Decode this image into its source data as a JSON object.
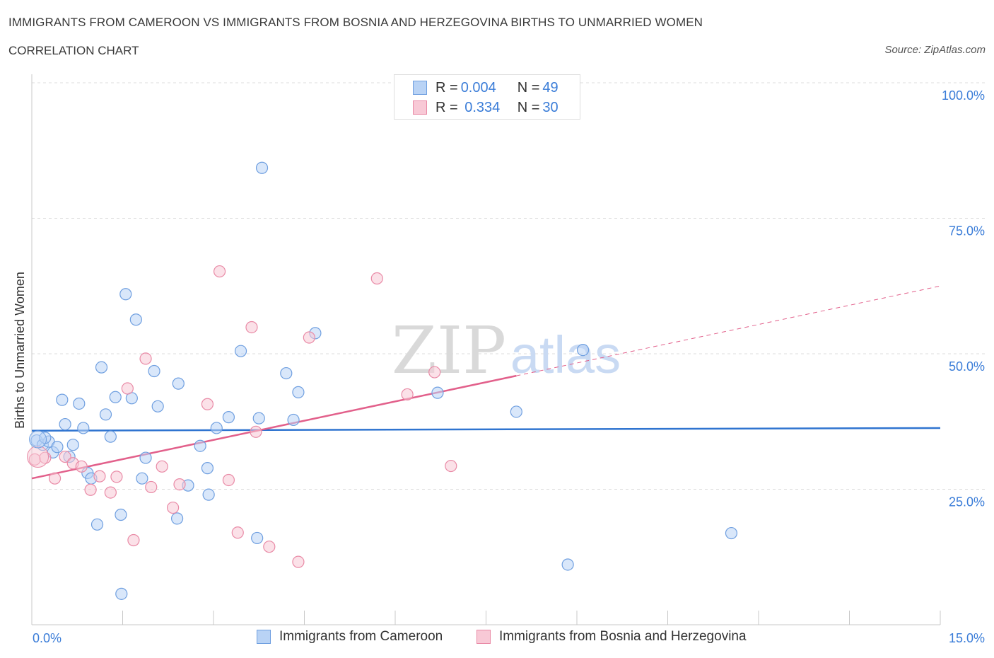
{
  "header": {
    "title": "IMMIGRANTS FROM CAMEROON VS IMMIGRANTS FROM BOSNIA AND HERZEGOVINA BIRTHS TO UNMARRIED WOMEN",
    "subtitle": "CORRELATION CHART",
    "source": "Source: ZipAtlas.com"
  },
  "legend": {
    "rows": [
      {
        "r_label": "R = ",
        "r_value": "0.004",
        "n_label": "N = ",
        "n_value": "49"
      },
      {
        "r_label": "R = ",
        "r_value": " 0.334",
        "n_label": "N = ",
        "n_value": "30"
      }
    ]
  },
  "colors": {
    "blue_fill": "#b9d3f5",
    "blue_stroke": "#6f9fe0",
    "blue_line": "#2f74d0",
    "pink_fill": "#f8c9d6",
    "pink_stroke": "#e98aa6",
    "pink_line": "#e2608b",
    "axis_text": "#3b7dd8",
    "grid": "#dcdcdc"
  },
  "chart_data": {
    "type": "scatter",
    "title": "IMMIGRANTS FROM CAMEROON VS IMMIGRANTS FROM BOSNIA AND HERZEGOVINA BIRTHS TO UNMARRIED WOMEN",
    "xlabel": "",
    "ylabel": "Births to Unmarried Women",
    "xlim": [
      0,
      15
    ],
    "ylim": [
      0,
      100
    ],
    "x_tick_labels": [
      "0.0%",
      "15.0%"
    ],
    "y_ticks": [
      25,
      50,
      75,
      100
    ],
    "y_tick_labels": [
      "25.0%",
      "50.0%",
      "75.0%",
      "100.0%"
    ],
    "watermark": {
      "zip": "ZIP",
      "atlas": "atlas"
    },
    "series": [
      {
        "name": "Immigrants from Cameroon",
        "color": "#b9d3f5",
        "R": 0.004,
        "N": 49,
        "trend": {
          "x": [
            0,
            15
          ],
          "y": [
            35.8,
            36.3
          ],
          "dashed_after": null
        },
        "points": [
          {
            "x": 0.08,
            "y": 34.0
          },
          {
            "x": 0.18,
            "y": 33.2
          },
          {
            "x": 0.28,
            "y": 33.8
          },
          {
            "x": 0.35,
            "y": 31.8
          },
          {
            "x": 0.42,
            "y": 32.8
          },
          {
            "x": 0.5,
            "y": 41.5
          },
          {
            "x": 0.55,
            "y": 37.0
          },
          {
            "x": 0.62,
            "y": 31.0
          },
          {
            "x": 0.68,
            "y": 33.2
          },
          {
            "x": 0.78,
            "y": 40.8
          },
          {
            "x": 0.85,
            "y": 36.3
          },
          {
            "x": 0.92,
            "y": 28.0
          },
          {
            "x": 0.98,
            "y": 27.0
          },
          {
            "x": 1.08,
            "y": 18.5
          },
          {
            "x": 1.15,
            "y": 47.5
          },
          {
            "x": 1.22,
            "y": 38.8
          },
          {
            "x": 1.3,
            "y": 34.7
          },
          {
            "x": 1.38,
            "y": 42.0
          },
          {
            "x": 1.47,
            "y": 20.3
          },
          {
            "x": 1.48,
            "y": 5.7
          },
          {
            "x": 1.55,
            "y": 61.0
          },
          {
            "x": 1.65,
            "y": 41.8
          },
          {
            "x": 1.72,
            "y": 56.3
          },
          {
            "x": 1.82,
            "y": 27.0
          },
          {
            "x": 1.88,
            "y": 30.8
          },
          {
            "x": 2.02,
            "y": 46.8
          },
          {
            "x": 2.08,
            "y": 40.3
          },
          {
            "x": 2.42,
            "y": 44.5
          },
          {
            "x": 2.4,
            "y": 19.6
          },
          {
            "x": 2.58,
            "y": 25.7
          },
          {
            "x": 2.78,
            "y": 33.0
          },
          {
            "x": 2.9,
            "y": 28.9
          },
          {
            "x": 2.92,
            "y": 24.0
          },
          {
            "x": 3.05,
            "y": 36.3
          },
          {
            "x": 3.25,
            "y": 38.3
          },
          {
            "x": 3.45,
            "y": 50.5
          },
          {
            "x": 3.8,
            "y": 84.3
          },
          {
            "x": 3.75,
            "y": 38.1
          },
          {
            "x": 3.72,
            "y": 16.0
          },
          {
            "x": 4.2,
            "y": 46.4
          },
          {
            "x": 4.32,
            "y": 37.8
          },
          {
            "x": 4.4,
            "y": 42.9
          },
          {
            "x": 4.68,
            "y": 53.8
          },
          {
            "x": 6.7,
            "y": 42.8
          },
          {
            "x": 8.0,
            "y": 39.3
          },
          {
            "x": 8.85,
            "y": 11.1
          },
          {
            "x": 9.1,
            "y": 50.7
          },
          {
            "x": 11.55,
            "y": 16.9
          },
          {
            "x": 0.22,
            "y": 34.5
          }
        ]
      },
      {
        "name": "Immigrants from Bosnia and Herzegovina",
        "color": "#f8c9d6",
        "R": 0.334,
        "N": 30,
        "trend": {
          "x": [
            0,
            15
          ],
          "y": [
            27.0,
            62.5
          ],
          "dashed_after": 8.0
        },
        "points": [
          {
            "x": 0.05,
            "y": 30.5
          },
          {
            "x": 0.22,
            "y": 30.8
          },
          {
            "x": 0.38,
            "y": 27.0
          },
          {
            "x": 0.55,
            "y": 31.0
          },
          {
            "x": 0.68,
            "y": 29.8
          },
          {
            "x": 0.82,
            "y": 29.2
          },
          {
            "x": 0.97,
            "y": 24.9
          },
          {
            "x": 1.12,
            "y": 27.4
          },
          {
            "x": 1.3,
            "y": 24.4
          },
          {
            "x": 1.4,
            "y": 27.3
          },
          {
            "x": 1.58,
            "y": 43.6
          },
          {
            "x": 1.68,
            "y": 15.6
          },
          {
            "x": 1.88,
            "y": 49.1
          },
          {
            "x": 1.97,
            "y": 25.4
          },
          {
            "x": 2.15,
            "y": 29.2
          },
          {
            "x": 2.33,
            "y": 21.6
          },
          {
            "x": 2.44,
            "y": 25.9
          },
          {
            "x": 2.9,
            "y": 40.7
          },
          {
            "x": 3.1,
            "y": 65.2
          },
          {
            "x": 3.25,
            "y": 26.7
          },
          {
            "x": 3.4,
            "y": 17.0
          },
          {
            "x": 3.63,
            "y": 54.9
          },
          {
            "x": 3.7,
            "y": 35.6
          },
          {
            "x": 3.92,
            "y": 14.4
          },
          {
            "x": 4.4,
            "y": 11.6
          },
          {
            "x": 4.58,
            "y": 53.0
          },
          {
            "x": 5.7,
            "y": 63.9
          },
          {
            "x": 6.2,
            "y": 42.5
          },
          {
            "x": 6.65,
            "y": 46.6
          },
          {
            "x": 6.92,
            "y": 29.3
          }
        ]
      }
    ]
  }
}
